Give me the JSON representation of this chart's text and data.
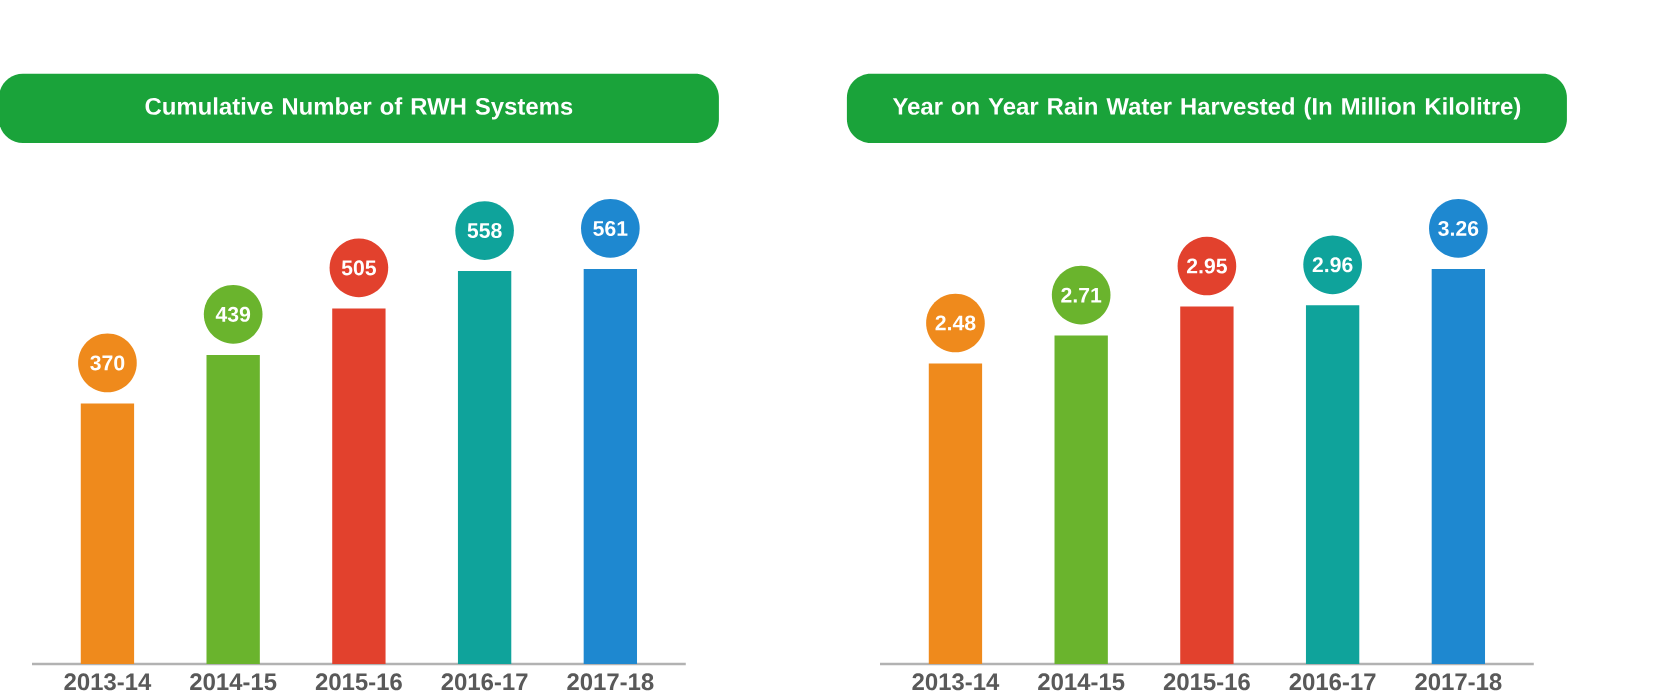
{
  "chart_data": [
    {
      "type": "bar",
      "title": "Cumulative Number of RWH Systems",
      "categories": [
        "2013-14",
        "2014-15",
        "2015-16",
        "2016-17",
        "2017-18"
      ],
      "values": [
        370,
        439,
        505,
        558,
        561
      ],
      "colors": [
        "#ef8a1c",
        "#6ab42d",
        "#e2412d",
        "#0fa39b",
        "#1e88d0"
      ],
      "data_labels": true
    },
    {
      "type": "bar",
      "title": "Year on Year Rain Water Harvested (In Million Kilolitre)",
      "categories": [
        "2013-14",
        "2014-15",
        "2015-16",
        "2016-17",
        "2017-18"
      ],
      "values": [
        2.48,
        2.71,
        2.95,
        2.96,
        3.26
      ],
      "colors": [
        "#ef8a1c",
        "#6ab42d",
        "#e2412d",
        "#0fa39b",
        "#1e88d0"
      ],
      "data_labels": true
    }
  ]
}
